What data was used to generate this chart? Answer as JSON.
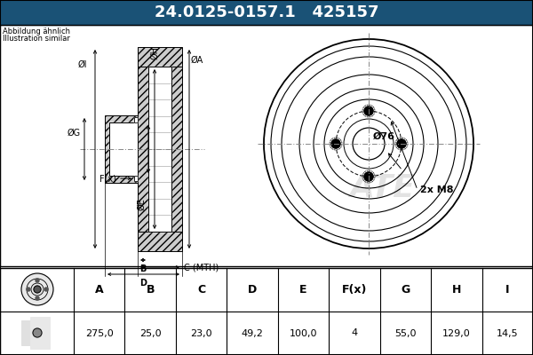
{
  "title_part": "24.0125-0157.1",
  "title_ref": "425157",
  "header_bg": "#1a5276",
  "header_text_color": "#ffffff",
  "body_bg": "#ffffff",
  "drawing_bg": "#ffffff",
  "note_text": [
    "Abbildung ähnlich",
    "Illustration similar"
  ],
  "table_headers": [
    "A",
    "B",
    "C",
    "D",
    "E",
    "F(x)",
    "G",
    "H",
    "I"
  ],
  "table_values": [
    "275,0",
    "25,0",
    "23,0",
    "49,2",
    "100,0",
    "4",
    "55,0",
    "129,0",
    "14,5"
  ],
  "note_diameter": "Ø76",
  "note_bolt": "2x M8",
  "hatch_color": "#555555",
  "line_color": "#000000",
  "centerline_color": "#888888",
  "ate_watermark": "#cccccc"
}
